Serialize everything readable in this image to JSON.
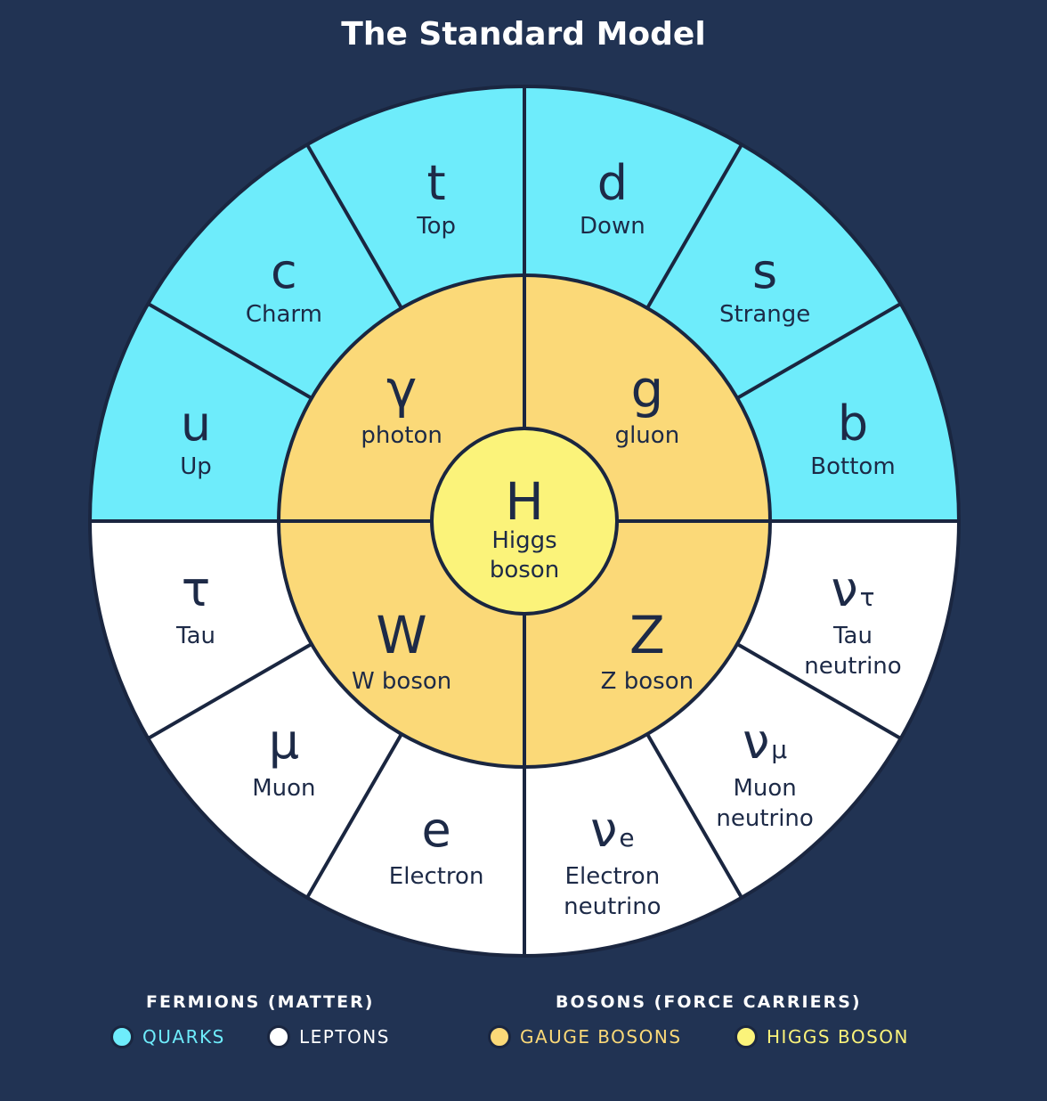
{
  "title": "The Standard Model",
  "colors": {
    "background": "#213353",
    "quark": "#6eecfb",
    "lepton": "#ffffff",
    "gauge_boson": "#fbd978",
    "higgs": "#fbf37a",
    "outline": "#1a2640",
    "text": "#1d2a47"
  },
  "higgs": {
    "symbol": "H",
    "name_line1": "Higgs",
    "name_line2": "boson"
  },
  "gauge_bosons": [
    {
      "symbol": "γ",
      "name": "photon"
    },
    {
      "symbol": "g",
      "name": "gluon"
    },
    {
      "symbol": "W",
      "name": "W boson"
    },
    {
      "symbol": "Z",
      "name": "Z boson"
    }
  ],
  "quarks": [
    {
      "symbol": "u",
      "name": "Up"
    },
    {
      "symbol": "c",
      "name": "Charm"
    },
    {
      "symbol": "t",
      "name": "Top"
    },
    {
      "symbol": "d",
      "name": "Down"
    },
    {
      "symbol": "s",
      "name": "Strange"
    },
    {
      "symbol": "b",
      "name": "Bottom"
    }
  ],
  "leptons": [
    {
      "symbol": "ν",
      "subscript": "τ",
      "name_line1": "Tau",
      "name_line2": "neutrino"
    },
    {
      "symbol": "ν",
      "subscript": "μ",
      "name_line1": "Muon",
      "name_line2": "neutrino"
    },
    {
      "symbol": "ν",
      "subscript": "e",
      "name_line1": "Electron",
      "name_line2": "neutrino"
    },
    {
      "symbol": "e",
      "subscript": "",
      "name_line1": "Electron",
      "name_line2": ""
    },
    {
      "symbol": "μ",
      "subscript": "",
      "name_line1": "Muon",
      "name_line2": ""
    },
    {
      "symbol": "τ",
      "subscript": "",
      "name_line1": "Tau",
      "name_line2": ""
    }
  ],
  "legend": {
    "fermions": {
      "heading": "FERMIONS (MATTER)",
      "quarks_label": "QUARKS",
      "leptons_label": "LEPTONS",
      "quarks_color": "#6eecfb",
      "leptons_color": "#ffffff"
    },
    "bosons": {
      "heading": "BOSONS (FORCE CARRIERS)",
      "gauge_label": "GAUGE BOSONS",
      "higgs_label": "HIGGS BOSON",
      "gauge_color": "#fbd978",
      "higgs_color": "#fbf37a"
    }
  }
}
